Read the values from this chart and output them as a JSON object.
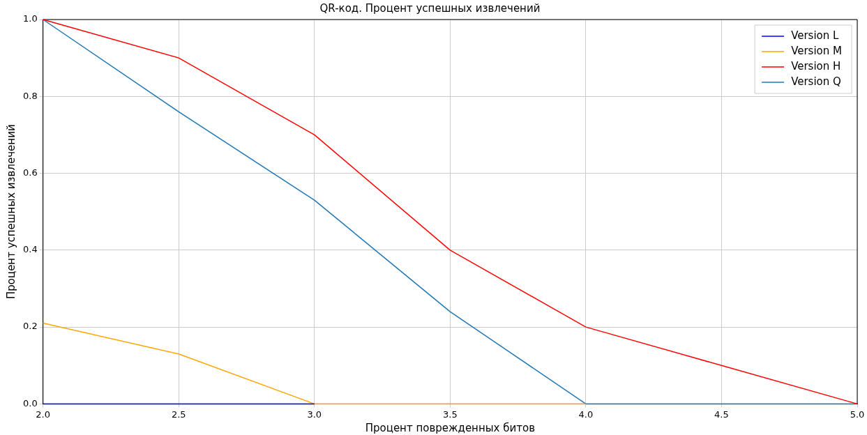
{
  "chart_data": {
    "type": "line",
    "title": "QR-код. Процент успешных извлечений",
    "xlabel": "Процент поврежденных битов",
    "ylabel": "Процент успешных извлечений",
    "x": [
      2.0,
      2.5,
      3.0,
      3.5,
      4.0,
      4.5,
      5.0
    ],
    "series": [
      {
        "name": "Version L",
        "color": "#0000ff",
        "values": [
          0,
          0,
          0,
          null,
          null,
          null,
          null
        ]
      },
      {
        "name": "Version M",
        "color": "#ffa500",
        "values": [
          0.21,
          0.13,
          0,
          0,
          0,
          null,
          null
        ]
      },
      {
        "name": "Version H",
        "color": "#ff0000",
        "values": [
          1.0,
          0.9,
          0.7,
          0.4,
          0.2,
          0.1,
          0
        ]
      },
      {
        "name": "Version Q",
        "color": "#1f77b4",
        "values": [
          1.0,
          0.76,
          0.53,
          0.24,
          0,
          0,
          0
        ]
      }
    ],
    "xlim": [
      2.0,
      5.0
    ],
    "xticks": [
      {
        "value": 2,
        "label": "2.0"
      },
      {
        "value": 2.5,
        "label": "2.5"
      },
      {
        "value": 3,
        "label": "3.0"
      },
      {
        "value": 3.5,
        "label": "3.5"
      },
      {
        "value": 4,
        "label": "4.0"
      },
      {
        "value": 4.5,
        "label": "4.5"
      },
      {
        "value": 5,
        "label": "5.0"
      }
    ],
    "ylim": [
      0,
      1.0
    ],
    "yticks": [
      {
        "value": 0,
        "label": "0.0"
      },
      {
        "value": 0.2,
        "label": "0.2"
      },
      {
        "value": 0.4,
        "label": "0.4"
      },
      {
        "value": 0.6,
        "label": "0.6"
      },
      {
        "value": 0.8,
        "label": "0.8"
      },
      {
        "value": 1,
        "label": "1.0"
      }
    ],
    "grid": true,
    "legend": "top right",
    "marker": "none",
    "line_style": "solid"
  }
}
